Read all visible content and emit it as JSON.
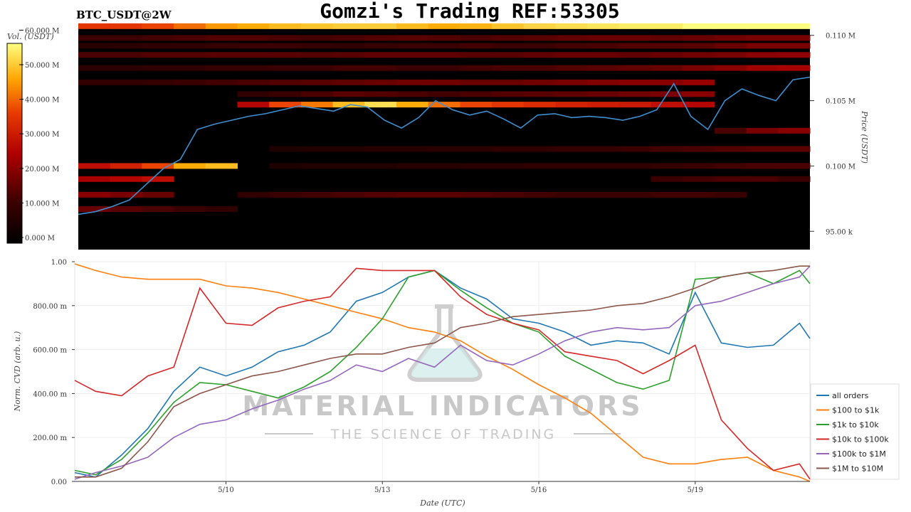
{
  "header": {
    "title": "Gomzi's Trading REF:53305",
    "symbol": "BTC_USDT@2W"
  },
  "watermark": {
    "main": "MATERIAL INDICATORS",
    "sub": "THE SCIENCE OF TRADING"
  },
  "colorbar": {
    "label": "Vol. (USDT)",
    "ticks": [
      "0.000 M",
      "10.000 M",
      "20.000 M",
      "30.000 M",
      "40.000 M",
      "50.000 M",
      "60.000 M"
    ],
    "range": [
      0,
      60
    ]
  },
  "chart_data": [
    {
      "type": "heatmap",
      "ylabel": "Price (USDT)",
      "y_tick_labels": [
        "95.00 k",
        "0.100 M",
        "0.105 M",
        "0.110 M"
      ],
      "y_ticks": [
        95000,
        100000,
        105000,
        110000
      ],
      "ylim": [
        93600,
        110800
      ],
      "price_series": {
        "color": "#3d8fd1",
        "y": [
          96300,
          96500,
          96900,
          97400,
          98600,
          99800,
          100500,
          102800,
          103200,
          103500,
          103800,
          104000,
          104300,
          104600,
          104400,
          104200,
          104700,
          104500,
          103500,
          102900,
          103700,
          105000,
          104300,
          103900,
          104200,
          103600,
          102900,
          103900,
          104000,
          103700,
          103800,
          103700,
          103500,
          103800,
          104300,
          106300,
          103800,
          102800,
          105000,
          105900,
          105400,
          105000,
          106600,
          106800
        ]
      },
      "heat_levels": [
        {
          "price": 110700,
          "vol": [
            38,
            38,
            40,
            44,
            48,
            50,
            52,
            53,
            54,
            54,
            52,
            50,
            51,
            53,
            55,
            56,
            57,
            58,
            58,
            60,
            60,
            60,
            60
          ]
        },
        {
          "price": 109800,
          "vol": [
            12,
            12,
            13,
            14,
            15,
            15,
            14,
            13,
            14,
            15,
            16,
            15,
            14,
            15,
            16,
            17,
            18,
            18,
            17,
            18,
            19,
            20,
            20
          ]
        },
        {
          "price": 109200,
          "vol": [
            8,
            9,
            10,
            10,
            11,
            12,
            12,
            11,
            10,
            11,
            12,
            12,
            13,
            12,
            12,
            13,
            14,
            15,
            15,
            16,
            18,
            20,
            20
          ]
        },
        {
          "price": 108500,
          "vol": [
            14,
            14,
            15,
            15,
            16,
            16,
            16,
            15,
            16,
            17,
            17,
            17,
            16,
            16,
            17,
            18,
            18,
            17,
            18,
            19,
            20,
            22,
            23
          ]
        },
        {
          "price": 107500,
          "vol": [
            9,
            9,
            10,
            10,
            11,
            11,
            12,
            12,
            13,
            13,
            12,
            12,
            13,
            14,
            14,
            15,
            16,
            17,
            18,
            20,
            22,
            25,
            26
          ]
        },
        {
          "price": 106400,
          "vol": [
            10,
            10,
            11,
            12,
            13,
            14,
            15,
            16,
            17,
            18,
            19,
            19,
            18,
            18,
            19,
            20,
            21,
            22,
            22,
            24,
            0,
            0,
            0
          ]
        },
        {
          "price": 105500,
          "vol": [
            0,
            0,
            0,
            0,
            0,
            10,
            12,
            14,
            16,
            15,
            14,
            13,
            14,
            15,
            16,
            17,
            18,
            19,
            20,
            22,
            0,
            0,
            0
          ]
        },
        {
          "price": 104700,
          "vol": [
            0,
            0,
            0,
            0,
            0,
            28,
            40,
            45,
            52,
            56,
            50,
            44,
            40,
            38,
            36,
            34,
            33,
            32,
            30,
            28,
            0,
            0,
            0
          ]
        },
        {
          "price": 102700,
          "vol": [
            0,
            0,
            0,
            0,
            0,
            0,
            0,
            0,
            0,
            0,
            0,
            0,
            0,
            0,
            0,
            0,
            0,
            0,
            0,
            0,
            14,
            20,
            22
          ]
        },
        {
          "price": 101300,
          "vol": [
            0,
            0,
            0,
            0,
            0,
            0,
            6,
            7,
            7,
            8,
            8,
            9,
            9,
            10,
            10,
            11,
            11,
            12,
            13,
            14,
            15,
            16,
            16
          ]
        },
        {
          "price": 100000,
          "vol": [
            30,
            34,
            40,
            50,
            52,
            0,
            6,
            7,
            7,
            7,
            8,
            8,
            9,
            9,
            10,
            10,
            10,
            10,
            11,
            12,
            13,
            14,
            14
          ]
        },
        {
          "price": 99000,
          "vol": [
            26,
            28,
            30,
            0,
            0,
            0,
            0,
            0,
            0,
            0,
            0,
            0,
            0,
            0,
            0,
            0,
            0,
            0,
            12,
            13,
            14,
            14,
            12
          ]
        },
        {
          "price": 97800,
          "vol": [
            22,
            20,
            18,
            0,
            0,
            10,
            12,
            13,
            14,
            15,
            16,
            16,
            15,
            14,
            13,
            12,
            12,
            12,
            13,
            13,
            12,
            0,
            0
          ]
        },
        {
          "price": 96700,
          "vol": [
            18,
            16,
            14,
            12,
            10,
            0,
            0,
            0,
            0,
            0,
            0,
            0,
            0,
            0,
            0,
            0,
            0,
            0,
            0,
            0,
            0,
            0,
            0
          ]
        }
      ]
    },
    {
      "type": "line",
      "xlabel": "Date (UTC)",
      "ylabel": "Norm. CVD (arb. u.)",
      "x_tick_labels": [
        "5/10",
        "5/13",
        "5/16",
        "5/19"
      ],
      "x_ticks": [
        3,
        6,
        9,
        12
      ],
      "xlim": [
        0.1,
        14.2
      ],
      "y_tick_labels": [
        "0.00",
        "200.00 m",
        "400.00 m",
        "600.00 m",
        "800.00 m",
        "1.00"
      ],
      "y_ticks": [
        0,
        0.2,
        0.4,
        0.6,
        0.8,
        1.0
      ],
      "ylim": [
        0,
        1
      ],
      "x": [
        0.1,
        0.5,
        1.0,
        1.5,
        2.0,
        2.5,
        3.0,
        3.5,
        4.0,
        4.5,
        5.0,
        5.5,
        6.0,
        6.5,
        7.0,
        7.5,
        8.0,
        8.5,
        9.0,
        9.5,
        10.0,
        10.5,
        11.0,
        11.5,
        12.0,
        12.5,
        13.0,
        13.5,
        14.0,
        14.2
      ],
      "series": [
        {
          "name": "all orders",
          "color": "#1f77b4",
          "values": [
            0.04,
            0.02,
            0.12,
            0.24,
            0.41,
            0.52,
            0.48,
            0.52,
            0.59,
            0.62,
            0.68,
            0.82,
            0.86,
            0.93,
            0.96,
            0.88,
            0.83,
            0.74,
            0.72,
            0.68,
            0.62,
            0.64,
            0.63,
            0.58,
            0.86,
            0.63,
            0.61,
            0.62,
            0.72,
            0.65
          ]
        },
        {
          "name": "$100 to $1k",
          "color": "#ff7f0e",
          "values": [
            0.99,
            0.96,
            0.93,
            0.92,
            0.92,
            0.92,
            0.89,
            0.88,
            0.86,
            0.83,
            0.8,
            0.77,
            0.74,
            0.7,
            0.68,
            0.64,
            0.57,
            0.51,
            0.44,
            0.38,
            0.31,
            0.21,
            0.11,
            0.08,
            0.08,
            0.1,
            0.11,
            0.05,
            0.02,
            0.0
          ]
        },
        {
          "name": "$1k to $10k",
          "color": "#2ca02c",
          "values": [
            0.05,
            0.03,
            0.1,
            0.22,
            0.36,
            0.45,
            0.44,
            0.41,
            0.38,
            0.43,
            0.5,
            0.61,
            0.74,
            0.93,
            0.96,
            0.87,
            0.79,
            0.72,
            0.68,
            0.57,
            0.51,
            0.45,
            0.42,
            0.46,
            0.92,
            0.93,
            0.95,
            0.9,
            0.96,
            0.9
          ]
        },
        {
          "name": "$10k to $100k",
          "color": "#d62728",
          "values": [
            0.46,
            0.41,
            0.39,
            0.48,
            0.52,
            0.88,
            0.72,
            0.71,
            0.79,
            0.82,
            0.84,
            0.97,
            0.96,
            0.96,
            0.96,
            0.84,
            0.76,
            0.72,
            0.69,
            0.59,
            0.57,
            0.55,
            0.49,
            0.55,
            0.62,
            0.28,
            0.15,
            0.05,
            0.08,
            0.01
          ]
        },
        {
          "name": "$100k to $1M",
          "color": "#9467bd",
          "values": [
            0.01,
            0.04,
            0.07,
            0.11,
            0.2,
            0.26,
            0.28,
            0.33,
            0.37,
            0.42,
            0.46,
            0.53,
            0.5,
            0.56,
            0.52,
            0.62,
            0.55,
            0.53,
            0.58,
            0.64,
            0.68,
            0.7,
            0.69,
            0.7,
            0.8,
            0.82,
            0.86,
            0.9,
            0.93,
            0.98
          ]
        },
        {
          "name": "$1M to $10M",
          "color": "#8c564b",
          "values": [
            0.02,
            0.02,
            0.06,
            0.18,
            0.34,
            0.4,
            0.44,
            0.48,
            0.5,
            0.53,
            0.56,
            0.58,
            0.58,
            0.61,
            0.63,
            0.7,
            0.72,
            0.75,
            0.76,
            0.77,
            0.78,
            0.8,
            0.81,
            0.84,
            0.88,
            0.93,
            0.95,
            0.96,
            0.98,
            0.98
          ]
        }
      ]
    }
  ]
}
